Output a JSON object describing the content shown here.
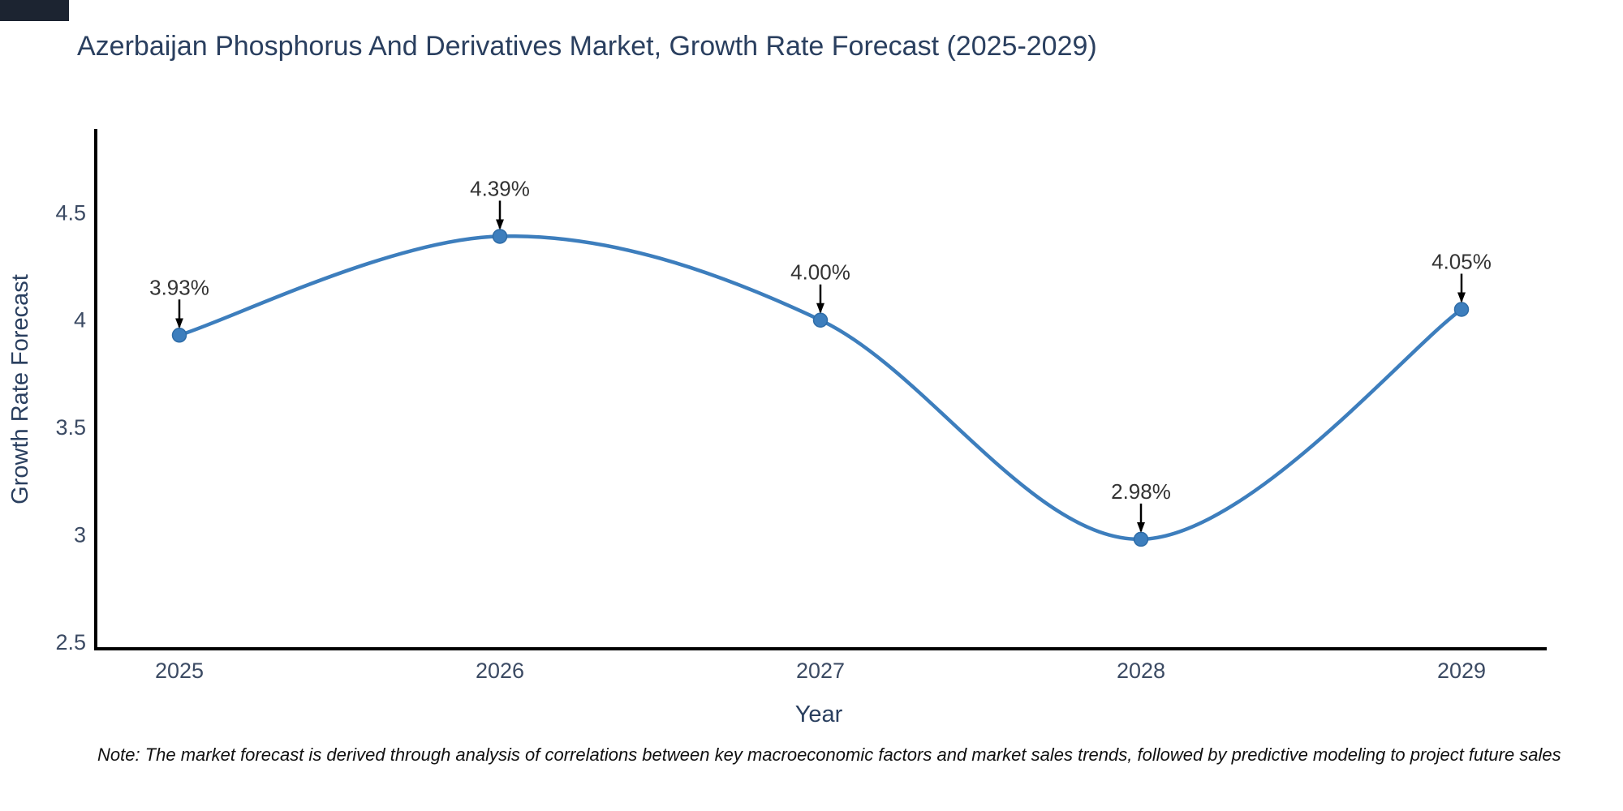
{
  "chart_data": {
    "type": "line",
    "title": "Azerbaijan Phosphorus And Derivatives Market, Growth Rate Forecast (2025-2029)",
    "xlabel": "Year",
    "ylabel": "Growth Rate Forecast",
    "categories": [
      "2025",
      "2026",
      "2027",
      "2028",
      "2029"
    ],
    "series": [
      {
        "name": "Growth Rate Forecast",
        "values": [
          3.93,
          4.39,
          4.0,
          2.98,
          4.05
        ]
      }
    ],
    "point_labels": [
      "3.93%",
      "4.39%",
      "4.00%",
      "2.98%",
      "4.05%"
    ],
    "yticks": [
      2.5,
      3,
      3.5,
      4,
      4.5
    ],
    "ytick_labels": [
      "2.5",
      "3",
      "3.5",
      "4",
      "4.5"
    ],
    "ylim": [
      2.47,
      4.89
    ],
    "grid": false,
    "legend": "none",
    "line_shape": "spline",
    "colors": {
      "line": "#3d7ebd",
      "marker_fill": "#3d7ebd",
      "marker_edge": "#2e6ca7",
      "annotation_arrow": "#000000",
      "annotation_text": "#333333",
      "title_text": "#2a3f5f",
      "axis_title_text": "#2a3f5f",
      "tick_text": "#3b4a63",
      "axis_line": "#000000",
      "background": "#ffffff"
    }
  },
  "note": "Note: The market forecast is derived through analysis of correlations between key macroeconomic factors and market sales trends, followed by predictive modeling to project future sales"
}
